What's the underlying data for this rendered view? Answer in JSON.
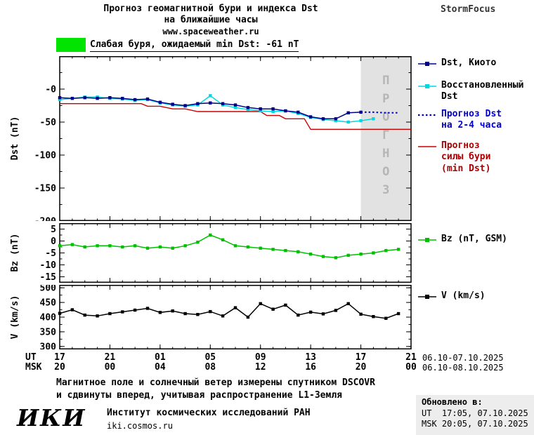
{
  "header": {
    "title_line1": "Прогноз геомагнитной бури и индекса Dst",
    "title_line2": "на ближайшие часы",
    "url": "www.spaceweather.ru",
    "brand": "StormFocus"
  },
  "alert": {
    "text": "Слабая буря, ожидаемый min Dst: -61 nT",
    "swatch_color": "#00e400"
  },
  "legend": {
    "dst": [
      {
        "label": "Dst, Киото",
        "color": "#00008b"
      },
      {
        "label": "Восстановленный\nDst",
        "color": "#00d8e0"
      },
      {
        "label": "Прогноз Dst\nна 2-4 часа",
        "color": "#0000cc"
      },
      {
        "label": "Прогноз\nсилы бури\n(min Dst)",
        "color": "#aa0000"
      }
    ],
    "bz": "Bz (nT, GSM)",
    "v": "V (km/s)"
  },
  "chart_data": [
    {
      "type": "line",
      "title": "Прогноз геомагнитной бури и индекса Dst",
      "ylabel": "Dst (nT)",
      "xlim": [
        17,
        45
      ],
      "ylim": [
        -200,
        50
      ],
      "xticks_major": [
        17,
        21,
        25,
        29,
        33,
        37,
        41,
        45
      ],
      "yticks": [
        {
          "v": 0,
          "label": "-0"
        },
        {
          "v": -50,
          "label": "-50"
        },
        {
          "v": -100,
          "label": "-100"
        },
        {
          "v": -150,
          "label": "-150"
        },
        {
          "v": -200,
          "label": "-200"
        }
      ],
      "yminor": 25,
      "forecast_region": {
        "start": 41,
        "end": 45,
        "label": "ПРОГНОЗ",
        "fill": "#e2e2e2"
      },
      "series": [
        {
          "name": "Прогноз силы бури (min Dst)",
          "color": "#cc0000",
          "width": 1.4,
          "marker": false,
          "x": [
            17,
            23.5,
            24,
            25,
            26,
            27,
            28,
            33,
            33.5,
            34.5,
            35,
            36.5,
            37,
            45
          ],
          "y": [
            -22,
            -22,
            -26,
            -26,
            -30,
            -30,
            -34,
            -34,
            -40,
            -40,
            -45,
            -45,
            -61,
            -61
          ]
        },
        {
          "name": "Восстановленный Dst",
          "color": "#00d8e0",
          "width": 1.5,
          "marker": true,
          "x0": 17,
          "dx": 1,
          "y": [
            -16,
            -14,
            -12,
            -12,
            -14,
            -15,
            -17,
            -16,
            -21,
            -24,
            -26,
            -24,
            -10,
            -24,
            -28,
            -31,
            -33,
            -34,
            -33,
            -37,
            -43,
            -46,
            -48,
            -50,
            -48,
            -45
          ]
        },
        {
          "name": "Dst, Киото",
          "color": "#00008b",
          "width": 1.5,
          "marker": true,
          "x0": 17,
          "dx": 1,
          "y": [
            -13,
            -14,
            -13,
            -14,
            -13,
            -14,
            -16,
            -15,
            -20,
            -23,
            -25,
            -22,
            -21,
            -22,
            -24,
            -28,
            -30,
            -30,
            -33,
            -35,
            -42,
            -45,
            -45,
            -36,
            -35
          ]
        },
        {
          "name": "Прогноз Dst на 2-4 часа",
          "color": "#0000cc",
          "width": 2,
          "marker": false,
          "dash": true,
          "x0": 41,
          "dx": 1,
          "y": [
            -35,
            -35,
            -36,
            -36
          ]
        }
      ]
    },
    {
      "type": "line",
      "title": "Bz",
      "ylabel": "Bz (nT)",
      "xlim": [
        17,
        45
      ],
      "ylim": [
        -17.5,
        7.5
      ],
      "xticks_major": [
        17,
        21,
        25,
        29,
        33,
        37,
        41,
        45
      ],
      "yticks": [
        {
          "v": 5,
          "label": "5"
        },
        {
          "v": 0,
          "label": "0"
        },
        {
          "v": -5,
          "label": "-5"
        },
        {
          "v": -10,
          "label": "-10"
        },
        {
          "v": -15,
          "label": "-15"
        }
      ],
      "yminor": 2.5,
      "series": [
        {
          "name": "Bz (nT, GSM)",
          "color": "#00c000",
          "width": 1.5,
          "marker": true,
          "x0": 17,
          "dx": 1,
          "y": [
            -2,
            -1.5,
            -2.5,
            -2,
            -2,
            -2.5,
            -2,
            -3,
            -2.5,
            -3,
            -2,
            -0.5,
            2.5,
            0.5,
            -2,
            -2.5,
            -3,
            -3.5,
            -4,
            -4.5,
            -5.5,
            -6.5,
            -7,
            -6,
            -5.5,
            -5,
            -4,
            -3.5
          ]
        }
      ]
    },
    {
      "type": "line",
      "title": "V",
      "ylabel": "V (km/s)",
      "xlim": [
        17,
        45
      ],
      "ylim": [
        290,
        510
      ],
      "xticks_major": [
        17,
        21,
        25,
        29,
        33,
        37,
        41,
        45
      ],
      "yticks": [
        {
          "v": 500,
          "label": "500"
        },
        {
          "v": 450,
          "label": "450"
        },
        {
          "v": 400,
          "label": "400"
        },
        {
          "v": 350,
          "label": "350"
        },
        {
          "v": 300,
          "label": "300"
        }
      ],
      "yminor": 25,
      "series": [
        {
          "name": "V (km/s)",
          "color": "#000000",
          "width": 1.5,
          "marker": true,
          "x0": 17,
          "dx": 1,
          "y": [
            413,
            425,
            407,
            404,
            412,
            418,
            424,
            430,
            416,
            421,
            412,
            409,
            419,
            404,
            432,
            400,
            446,
            427,
            441,
            407,
            417,
            411,
            423,
            446,
            410,
            402,
            396,
            412
          ]
        }
      ]
    }
  ],
  "xaxis": {
    "ut_label": "UT",
    "msk_label": "MSK",
    "tick_hours": [
      17,
      21,
      25,
      29,
      33,
      37,
      41,
      45
    ],
    "ut_ticks": [
      "17",
      "21",
      "01",
      "05",
      "09",
      "13",
      "17",
      "21"
    ],
    "msk_ticks": [
      "20",
      "00",
      "04",
      "08",
      "12",
      "16",
      "20",
      "00"
    ],
    "date_range_ut": "06.10-07.10.2025",
    "date_range_msk": "06.10-08.10.2025"
  },
  "footer": {
    "note_line1": "Магнитное поле и солнечный ветер измерены спутником DSCOVR",
    "note_line2": "и сдвинуты вперед, учитывая распространение L1-Земля",
    "logo": "ИКИ",
    "institute": "Институт космических исследований РАН",
    "site": "iki.cosmos.ru",
    "updated_label": "Обновлено в:",
    "updated_ut": "UT  17:05, 07.10.2025",
    "updated_msk": "MSK 20:05, 07.10.2025"
  }
}
